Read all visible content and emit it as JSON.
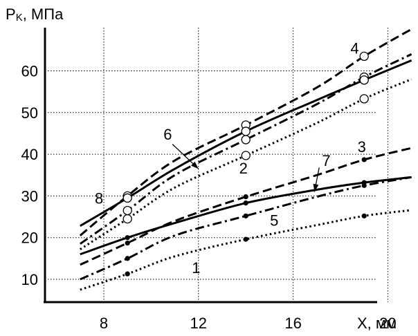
{
  "chart_data": {
    "type": "line",
    "title": "",
    "ylabel_main": "P",
    "ylabel_sub": "K",
    "ylabel_unit": ", МПа",
    "xlabel": "X, мм",
    "xlim": [
      6.8,
      21.3
    ],
    "ylim": [
      5,
      72
    ],
    "x_ticks": [
      8,
      12,
      16,
      20
    ],
    "y_ticks": [
      10,
      20,
      30,
      40,
      50,
      60
    ],
    "grid": true,
    "series": [
      {
        "name": "1",
        "style": "dotted",
        "marker": "dot",
        "x": [
          7,
          9,
          11,
          14,
          17,
          19,
          21
        ],
        "y": [
          7.5,
          11.3,
          15.5,
          19.6,
          23,
          25.2,
          26.6
        ]
      },
      {
        "name": "2",
        "style": "dotted",
        "marker": "circle",
        "x": [
          7,
          9,
          11,
          14,
          17,
          19,
          21
        ],
        "y": [
          17.2,
          24.5,
          32,
          39.7,
          47.5,
          53.3,
          58
        ]
      },
      {
        "name": "3",
        "style": "dashed",
        "marker": "dot",
        "x": [
          7,
          9,
          11,
          14,
          17,
          19,
          21
        ],
        "y": [
          13.5,
          18.7,
          24,
          29.8,
          35,
          38.7,
          41.5
        ]
      },
      {
        "name": "4",
        "style": "dashed",
        "marker": "circle",
        "x": [
          7,
          9,
          11,
          14,
          17,
          19,
          21
        ],
        "y": [
          20.5,
          30,
          38.5,
          47,
          56,
          63.5,
          70
        ]
      },
      {
        "name": "5",
        "style": "dashdot",
        "marker": "dot",
        "x": [
          7,
          9,
          11,
          14,
          17,
          19,
          21
        ],
        "y": [
          10,
          15,
          20.5,
          25.2,
          29.8,
          32.5,
          34.5
        ]
      },
      {
        "name": "6",
        "style": "dashdot",
        "marker": "circle",
        "x": [
          7,
          9,
          11,
          14,
          17,
          19,
          21
        ],
        "y": [
          18.5,
          26.5,
          35,
          43.5,
          52,
          58.5,
          64
        ]
      },
      {
        "name": "7",
        "style": "solid",
        "marker": "dot",
        "x": [
          7,
          9,
          11,
          14,
          17,
          19,
          21
        ],
        "y": [
          16,
          20,
          23.5,
          28.3,
          31.5,
          33.2,
          34.5
        ]
      },
      {
        "name": "8",
        "style": "solid",
        "marker": "circle",
        "x": [
          7,
          9,
          11,
          14,
          17,
          19,
          21
        ],
        "y": [
          22.8,
          29.5,
          36.5,
          45.5,
          53,
          57.8,
          62.5
        ]
      }
    ],
    "labels": [
      {
        "text": "1",
        "x": 11.9,
        "y": 12.8
      },
      {
        "text": "2",
        "x": 13.9,
        "y": 36.7
      },
      {
        "text": "3",
        "x": 18.9,
        "y": 41.8
      },
      {
        "text": "4",
        "x": 18.6,
        "y": 65.5
      },
      {
        "text": "5",
        "x": 15.2,
        "y": 24.2
      },
      {
        "text": "6",
        "x": 10.7,
        "y": 44.8
      },
      {
        "text": "7",
        "x": 17.4,
        "y": 38.5
      },
      {
        "text": "8",
        "x": 7.8,
        "y": 29.5
      }
    ],
    "arrows": [
      {
        "name": "6",
        "from": [
          10.9,
          42.4
        ],
        "to": [
          12.0,
          36.5
        ]
      },
      {
        "name": "7",
        "from": [
          17.1,
          36.8
        ],
        "to": [
          16.9,
          31.0
        ]
      }
    ]
  }
}
